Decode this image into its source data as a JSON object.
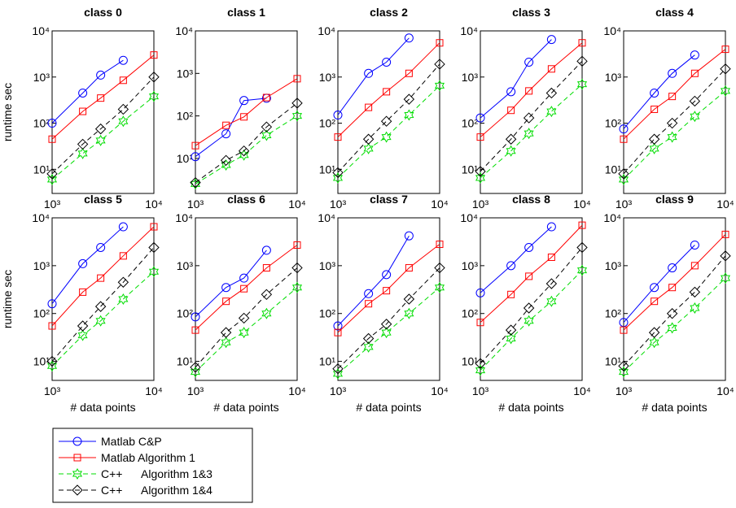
{
  "chart_data": [
    {
      "type": "line",
      "title": "class 0",
      "y_label": "runtime sec",
      "x": [
        1000,
        2000,
        3000,
        5000,
        10000
      ],
      "xlim": [
        1000,
        10000
      ],
      "ylim": [
        3,
        10000
      ],
      "log_x": true,
      "log_y": true,
      "xticks": [
        {
          "value": 1000,
          "label": "10³"
        },
        {
          "value": 10000,
          "label": "10⁴"
        }
      ],
      "yticks": [
        {
          "value": 10,
          "label": "10¹"
        },
        {
          "value": 100,
          "label": "10²"
        },
        {
          "value": 1000,
          "label": "10³"
        },
        {
          "value": 10000,
          "label": "10⁴"
        }
      ],
      "series": [
        {
          "name": "Matlab C&P",
          "color": "#0000ff",
          "marker": "circle",
          "dash": false,
          "values": [
            100,
            450,
            1100,
            2300,
            null
          ]
        },
        {
          "name": "Matlab Algorithm 1",
          "color": "#ff0000",
          "marker": "square",
          "dash": false,
          "values": [
            45,
            180,
            350,
            850,
            3000
          ]
        },
        {
          "name": "C++      Algorithm 1&3",
          "color": "#00dd00",
          "marker": "hexagram",
          "dash": true,
          "values": [
            6,
            22,
            42,
            110,
            380
          ]
        },
        {
          "name": "C++      Algorithm 1&4",
          "color": "#000000",
          "marker": "diamond",
          "dash": true,
          "values": [
            8,
            35,
            75,
            200,
            1000
          ]
        }
      ]
    },
    {
      "type": "line",
      "title": "class 1",
      "x": [
        1000,
        2000,
        3000,
        5000,
        10000
      ],
      "xlim": [
        1000,
        10000
      ],
      "ylim": [
        1.5,
        10000
      ],
      "log_x": true,
      "log_y": true,
      "xticks": [
        {
          "value": 1000,
          "label": "10³"
        },
        {
          "value": 10000,
          "label": "10⁴"
        }
      ],
      "yticks": [
        {
          "value": 10,
          "label": "10¹"
        },
        {
          "value": 100,
          "label": "10²"
        },
        {
          "value": 1000,
          "label": "10³"
        },
        {
          "value": 10000,
          "label": "10⁴"
        }
      ],
      "series": [
        {
          "color": "#0000ff",
          "marker": "circle",
          "dash": false,
          "values": [
            11,
            38,
            230,
            260,
            null
          ]
        },
        {
          "color": "#ff0000",
          "marker": "square",
          "dash": false,
          "values": [
            20,
            60,
            95,
            270,
            750
          ]
        },
        {
          "color": "#00dd00",
          "marker": "hexagram",
          "dash": true,
          "values": [
            2.5,
            7,
            12,
            35,
            100
          ]
        },
        {
          "color": "#000000",
          "marker": "diamond",
          "dash": true,
          "values": [
            2.7,
            9,
            15,
            55,
            200
          ]
        }
      ]
    },
    {
      "type": "line",
      "title": "class 2",
      "x": [
        1000,
        2000,
        3000,
        5000,
        10000
      ],
      "xlim": [
        1000,
        10000
      ],
      "ylim": [
        3,
        10000
      ],
      "log_x": true,
      "log_y": true,
      "xticks": [
        {
          "value": 1000,
          "label": "10³"
        },
        {
          "value": 10000,
          "label": "10⁴"
        }
      ],
      "yticks": [
        {
          "value": 10,
          "label": "10¹"
        },
        {
          "value": 100,
          "label": "10²"
        },
        {
          "value": 1000,
          "label": "10³"
        },
        {
          "value": 10000,
          "label": "10⁴"
        }
      ],
      "series": [
        {
          "color": "#0000ff",
          "marker": "circle",
          "dash": false,
          "values": [
            150,
            1200,
            2100,
            7000,
            null
          ]
        },
        {
          "color": "#ff0000",
          "marker": "square",
          "dash": false,
          "values": [
            50,
            220,
            480,
            1200,
            5500
          ]
        },
        {
          "color": "#00dd00",
          "marker": "hexagram",
          "dash": true,
          "values": [
            6.5,
            28,
            50,
            150,
            650
          ]
        },
        {
          "color": "#000000",
          "marker": "diamond",
          "dash": true,
          "values": [
            8.5,
            45,
            110,
            330,
            1900
          ]
        }
      ]
    },
    {
      "type": "line",
      "title": "class 3",
      "x": [
        1000,
        2000,
        3000,
        5000,
        10000
      ],
      "xlim": [
        1000,
        10000
      ],
      "ylim": [
        3,
        10000
      ],
      "log_x": true,
      "log_y": true,
      "xticks": [
        {
          "value": 1000,
          "label": "10³"
        },
        {
          "value": 10000,
          "label": "10⁴"
        }
      ],
      "yticks": [
        {
          "value": 10,
          "label": "10¹"
        },
        {
          "value": 100,
          "label": "10²"
        },
        {
          "value": 1000,
          "label": "10³"
        },
        {
          "value": 10000,
          "label": "10⁴"
        }
      ],
      "series": [
        {
          "color": "#0000ff",
          "marker": "circle",
          "dash": false,
          "values": [
            130,
            480,
            2100,
            6500,
            null
          ]
        },
        {
          "color": "#ff0000",
          "marker": "square",
          "dash": false,
          "values": [
            50,
            190,
            500,
            1500,
            5500
          ]
        },
        {
          "color": "#00dd00",
          "marker": "hexagram",
          "dash": true,
          "values": [
            6.5,
            25,
            60,
            180,
            700
          ]
        },
        {
          "color": "#000000",
          "marker": "diamond",
          "dash": true,
          "values": [
            9,
            45,
            130,
            450,
            2200
          ]
        }
      ]
    },
    {
      "type": "line",
      "title": "class 4",
      "x": [
        1000,
        2000,
        3000,
        5000,
        10000
      ],
      "xlim": [
        1000,
        10000
      ],
      "ylim": [
        3,
        10000
      ],
      "log_x": true,
      "log_y": true,
      "xticks": [
        {
          "value": 1000,
          "label": "10³"
        },
        {
          "value": 10000,
          "label": "10⁴"
        }
      ],
      "yticks": [
        {
          "value": 10,
          "label": "10¹"
        },
        {
          "value": 100,
          "label": "10²"
        },
        {
          "value": 1000,
          "label": "10³"
        },
        {
          "value": 10000,
          "label": "10⁴"
        }
      ],
      "series": [
        {
          "color": "#0000ff",
          "marker": "circle",
          "dash": false,
          "values": [
            75,
            450,
            1200,
            3000,
            null
          ]
        },
        {
          "color": "#ff0000",
          "marker": "square",
          "dash": false,
          "values": [
            45,
            200,
            380,
            1200,
            4000
          ]
        },
        {
          "color": "#00dd00",
          "marker": "hexagram",
          "dash": true,
          "values": [
            6,
            28,
            50,
            140,
            500
          ]
        },
        {
          "color": "#000000",
          "marker": "diamond",
          "dash": true,
          "values": [
            8,
            45,
            100,
            300,
            1500
          ]
        }
      ]
    },
    {
      "type": "line",
      "title": "class 5",
      "y_label": "runtime sec",
      "x_label": "# data points",
      "x": [
        1000,
        2000,
        3000,
        5000,
        10000
      ],
      "xlim": [
        1000,
        10000
      ],
      "ylim": [
        4,
        10000
      ],
      "log_x": true,
      "log_y": true,
      "xticks": [
        {
          "value": 1000,
          "label": "10³"
        },
        {
          "value": 10000,
          "label": "10⁴"
        }
      ],
      "yticks": [
        {
          "value": 10,
          "label": "10¹"
        },
        {
          "value": 100,
          "label": "10²"
        },
        {
          "value": 1000,
          "label": "10³"
        },
        {
          "value": 10000,
          "label": "10⁴"
        }
      ],
      "series": [
        {
          "color": "#0000ff",
          "marker": "circle",
          "dash": false,
          "values": [
            160,
            1100,
            2400,
            6500,
            null
          ]
        },
        {
          "color": "#ff0000",
          "marker": "square",
          "dash": false,
          "values": [
            55,
            280,
            550,
            1600,
            6500
          ]
        },
        {
          "color": "#00dd00",
          "marker": "hexagram",
          "dash": true,
          "values": [
            8,
            35,
            70,
            200,
            750
          ]
        },
        {
          "color": "#000000",
          "marker": "diamond",
          "dash": true,
          "values": [
            10,
            55,
            140,
            450,
            2400
          ]
        }
      ]
    },
    {
      "type": "line",
      "title": "class 6",
      "x_label": "# data points",
      "x": [
        1000,
        2000,
        3000,
        5000,
        10000
      ],
      "xlim": [
        1000,
        10000
      ],
      "ylim": [
        4,
        10000
      ],
      "log_x": true,
      "log_y": true,
      "xticks": [
        {
          "value": 1000,
          "label": "10³"
        },
        {
          "value": 10000,
          "label": "10⁴"
        }
      ],
      "yticks": [
        {
          "value": 10,
          "label": "10¹"
        },
        {
          "value": 100,
          "label": "10²"
        },
        {
          "value": 1000,
          "label": "10³"
        },
        {
          "value": 10000,
          "label": "10⁴"
        }
      ],
      "series": [
        {
          "color": "#0000ff",
          "marker": "circle",
          "dash": false,
          "values": [
            85,
            350,
            550,
            2100,
            null
          ]
        },
        {
          "color": "#ff0000",
          "marker": "square",
          "dash": false,
          "values": [
            45,
            180,
            330,
            900,
            2700
          ]
        },
        {
          "color": "#00dd00",
          "marker": "hexagram",
          "dash": true,
          "values": [
            6,
            25,
            40,
            100,
            350
          ]
        },
        {
          "color": "#000000",
          "marker": "diamond",
          "dash": true,
          "values": [
            7.5,
            40,
            80,
            250,
            900
          ]
        }
      ]
    },
    {
      "type": "line",
      "title": "class 7",
      "x_label": "# data points",
      "x": [
        1000,
        2000,
        3000,
        5000,
        10000
      ],
      "xlim": [
        1000,
        10000
      ],
      "ylim": [
        4,
        10000
      ],
      "log_x": true,
      "log_y": true,
      "xticks": [
        {
          "value": 1000,
          "label": "10³"
        },
        {
          "value": 10000,
          "label": "10⁴"
        }
      ],
      "yticks": [
        {
          "value": 10,
          "label": "10¹"
        },
        {
          "value": 100,
          "label": "10²"
        },
        {
          "value": 1000,
          "label": "10³"
        },
        {
          "value": 10000,
          "label": "10⁴"
        }
      ],
      "series": [
        {
          "color": "#0000ff",
          "marker": "circle",
          "dash": false,
          "values": [
            55,
            260,
            650,
            4200,
            null
          ]
        },
        {
          "color": "#ff0000",
          "marker": "square",
          "dash": false,
          "values": [
            40,
            160,
            300,
            900,
            2800
          ]
        },
        {
          "color": "#00dd00",
          "marker": "hexagram",
          "dash": true,
          "values": [
            5.5,
            20,
            40,
            100,
            350
          ]
        },
        {
          "color": "#000000",
          "marker": "diamond",
          "dash": true,
          "values": [
            7,
            30,
            60,
            200,
            900
          ]
        }
      ]
    },
    {
      "type": "line",
      "title": "class 8",
      "x_label": "# data points",
      "x": [
        1000,
        2000,
        3000,
        5000,
        10000
      ],
      "xlim": [
        1000,
        10000
      ],
      "ylim": [
        4,
        10000
      ],
      "log_x": true,
      "log_y": true,
      "xticks": [
        {
          "value": 1000,
          "label": "10³"
        },
        {
          "value": 10000,
          "label": "10⁴"
        }
      ],
      "yticks": [
        {
          "value": 10,
          "label": "10¹"
        },
        {
          "value": 100,
          "label": "10²"
        },
        {
          "value": 1000,
          "label": "10³"
        },
        {
          "value": 10000,
          "label": "10⁴"
        }
      ],
      "series": [
        {
          "color": "#0000ff",
          "marker": "circle",
          "dash": false,
          "values": [
            270,
            1000,
            2400,
            6500,
            null
          ]
        },
        {
          "color": "#ff0000",
          "marker": "square",
          "dash": false,
          "values": [
            65,
            250,
            600,
            1500,
            7000
          ]
        },
        {
          "color": "#00dd00",
          "marker": "hexagram",
          "dash": true,
          "values": [
            6.5,
            30,
            70,
            180,
            800
          ]
        },
        {
          "color": "#000000",
          "marker": "diamond",
          "dash": true,
          "values": [
            9,
            45,
            130,
            420,
            2400
          ]
        }
      ]
    },
    {
      "type": "line",
      "title": "class 9",
      "x_label": "# data points",
      "x": [
        1000,
        2000,
        3000,
        5000,
        10000
      ],
      "xlim": [
        1000,
        10000
      ],
      "ylim": [
        4,
        10000
      ],
      "log_x": true,
      "log_y": true,
      "xticks": [
        {
          "value": 1000,
          "label": "10³"
        },
        {
          "value": 10000,
          "label": "10⁴"
        }
      ],
      "yticks": [
        {
          "value": 10,
          "label": "10¹"
        },
        {
          "value": 100,
          "label": "10²"
        },
        {
          "value": 1000,
          "label": "10³"
        },
        {
          "value": 10000,
          "label": "10⁴"
        }
      ],
      "series": [
        {
          "color": "#0000ff",
          "marker": "circle",
          "dash": false,
          "values": [
            65,
            350,
            900,
            2700,
            null
          ]
        },
        {
          "color": "#ff0000",
          "marker": "square",
          "dash": false,
          "values": [
            45,
            180,
            350,
            1000,
            4500
          ]
        },
        {
          "color": "#00dd00",
          "marker": "hexagram",
          "dash": true,
          "values": [
            6,
            25,
            50,
            130,
            550
          ]
        },
        {
          "color": "#000000",
          "marker": "diamond",
          "dash": true,
          "values": [
            8,
            40,
            100,
            280,
            1600
          ]
        }
      ]
    }
  ]
}
